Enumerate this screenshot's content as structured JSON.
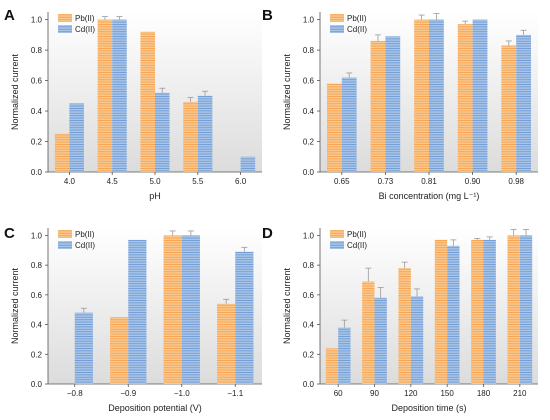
{
  "colors": {
    "pb_fill": "#fbc88f",
    "pb_stripe": "#f6a34f",
    "cd_fill": "#a9c6ea",
    "cd_stripe": "#6f9bd2",
    "error_bar": "#9a9a9a",
    "panel_bg_top": "#ffffff",
    "panel_bg_bottom": "#dcdcdc"
  },
  "chart_data": [
    {
      "panel": "A",
      "type": "bar",
      "xlabel": "pH",
      "ylabel": "Normalized current",
      "ylim": [
        0,
        1.05
      ],
      "yticks": [
        "0.0",
        "0.2",
        "0.4",
        "0.6",
        "0.8",
        "1.0"
      ],
      "legend_position": "top-left",
      "categories": [
        "4.0",
        "4.5",
        "5.0",
        "5.5",
        "6.0"
      ],
      "series": [
        {
          "name": "Pb(II)",
          "values": [
            0.25,
            1.0,
            0.92,
            0.46,
            null
          ],
          "errors": [
            0.0,
            0.02,
            0.0,
            0.03,
            0
          ]
        },
        {
          "name": "Cd(II)",
          "values": [
            0.45,
            1.0,
            0.52,
            0.5,
            0.1
          ],
          "errors": [
            0.0,
            0.02,
            0.03,
            0.03,
            0
          ]
        }
      ]
    },
    {
      "panel": "B",
      "type": "bar",
      "xlabel": "Bi concentration (mg L⁻¹)",
      "ylabel": "Normalized current",
      "ylim": [
        0,
        1.05
      ],
      "yticks": [
        "0.0",
        "0.2",
        "0.4",
        "0.6",
        "0.8",
        "1.0"
      ],
      "legend_position": "top-left",
      "categories": [
        "0.65",
        "0.73",
        "0.81",
        "0.90",
        "0.98"
      ],
      "series": [
        {
          "name": "Pb(II)",
          "values": [
            0.58,
            0.86,
            1.0,
            0.97,
            0.83
          ],
          "errors": [
            0.0,
            0.04,
            0.03,
            0.02,
            0.03
          ]
        },
        {
          "name": "Cd(II)",
          "values": [
            0.62,
            0.89,
            1.0,
            1.0,
            0.9
          ],
          "errors": [
            0.03,
            0.0,
            0.04,
            0.0,
            0.03
          ]
        }
      ]
    },
    {
      "panel": "C",
      "type": "bar",
      "xlabel": "Deposition potential (V)",
      "ylabel": "Normalized current",
      "ylim": [
        0,
        1.05
      ],
      "yticks": [
        "0.0",
        "0.2",
        "0.4",
        "0.6",
        "0.8",
        "1.0"
      ],
      "legend_position": "top-left",
      "categories": [
        "−0.8",
        "−0.9",
        "−1.0",
        "−1.1"
      ],
      "series": [
        {
          "name": "Pb(II)",
          "values": [
            null,
            0.45,
            1.0,
            0.54
          ],
          "errors": [
            0,
            0.0,
            0.03,
            0.03
          ]
        },
        {
          "name": "Cd(II)",
          "values": [
            0.48,
            0.97,
            1.0,
            0.89
          ],
          "errors": [
            0.03,
            0.0,
            0.03,
            0.03
          ]
        }
      ]
    },
    {
      "panel": "D",
      "type": "bar",
      "xlabel": "Deposition time (s)",
      "ylabel": "Normalized current",
      "ylim": [
        0,
        1.05
      ],
      "yticks": [
        "0.0",
        "0.2",
        "0.4",
        "0.6",
        "0.8",
        "1.0"
      ],
      "legend_position": "top-left",
      "categories": [
        "60",
        "90",
        "120",
        "150",
        "180",
        "210"
      ],
      "series": [
        {
          "name": "Pb(II)",
          "values": [
            0.24,
            0.69,
            0.78,
            0.97,
            0.97,
            1.0
          ],
          "errors": [
            0.0,
            0.09,
            0.04,
            0.0,
            0.01,
            0.04
          ]
        },
        {
          "name": "Cd(II)",
          "values": [
            0.38,
            0.58,
            0.59,
            0.93,
            0.97,
            1.0
          ],
          "errors": [
            0.05,
            0.07,
            0.05,
            0.04,
            0.02,
            0.04
          ]
        }
      ]
    }
  ]
}
